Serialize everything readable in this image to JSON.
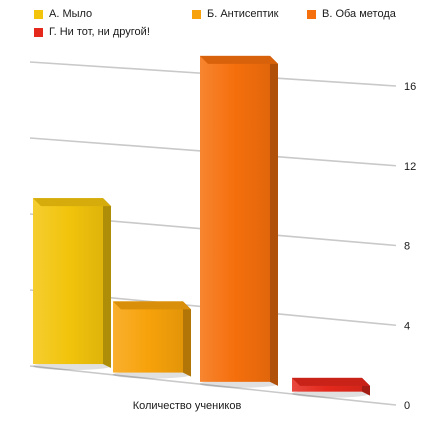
{
  "chart_data": {
    "type": "bar",
    "categories": [
      "А. Мыло",
      "Б. Антисептик",
      "В. Оба метода",
      "Г. Ни тот, ни другой!"
    ],
    "values": [
      9,
      4,
      17,
      1
    ],
    "colors": [
      "#f2c40c",
      "#f7a20a",
      "#f56f0c",
      "#e4281c"
    ],
    "xlabel": "Количество учеников",
    "ylabel": "",
    "ylim": [
      0,
      16
    ],
    "yticks": [
      "0",
      "4",
      "8",
      "12",
      "16"
    ],
    "grid": true,
    "legend_position": "top",
    "style": "3d-bars"
  }
}
